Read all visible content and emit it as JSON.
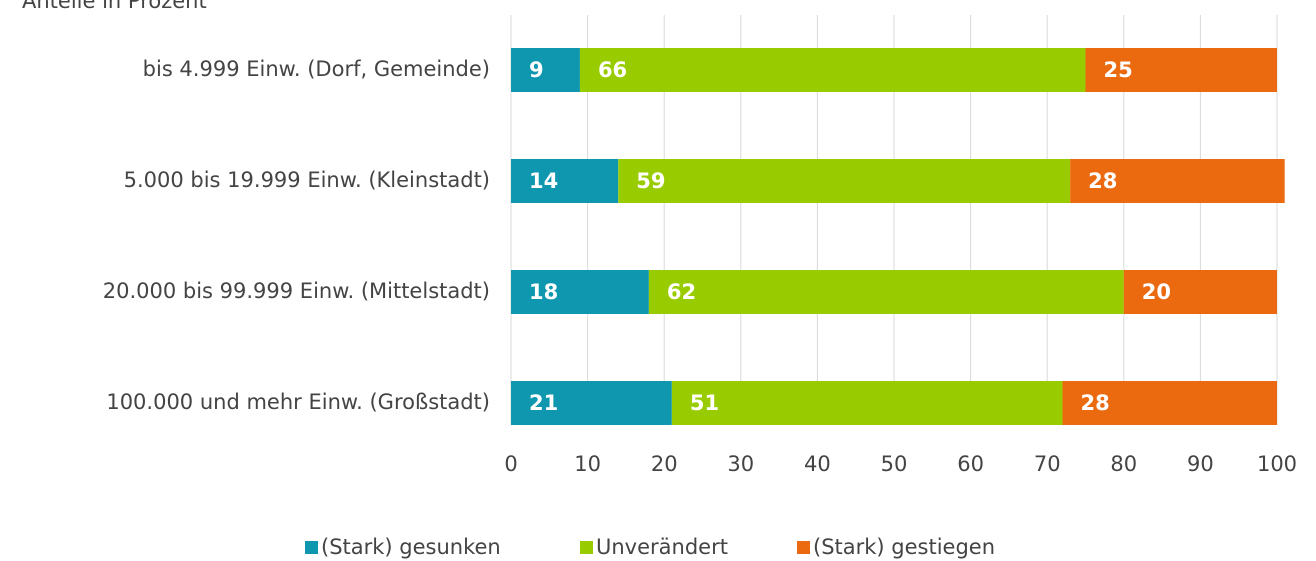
{
  "chart_data": {
    "type": "stacked_bar_horizontal",
    "title": "Anteile in Prozent",
    "categories": [
      "bis 4.999 Einw. (Dorf, Gemeinde)",
      "5.000 bis 19.999 Einw. (Kleinstadt)",
      "20.000 bis 99.999 Einw. (Mittelstadt)",
      "100.000 und mehr Einw. (Großstadt)"
    ],
    "series": [
      {
        "name": "(Stark) gesunken",
        "color": "#1097b0",
        "values": [
          9,
          14,
          18,
          21
        ]
      },
      {
        "name": "Unverändert",
        "color": "#99cc00",
        "values": [
          66,
          59,
          62,
          51
        ]
      },
      {
        "name": "(Stark) gestiegen",
        "color": "#eb6a10",
        "values": [
          25,
          28,
          20,
          28
        ]
      }
    ],
    "xlim": [
      0,
      100
    ],
    "xticks": [
      0,
      10,
      20,
      30,
      40,
      50,
      60,
      70,
      80,
      90,
      100
    ],
    "grid": true,
    "legend": "bottom"
  }
}
